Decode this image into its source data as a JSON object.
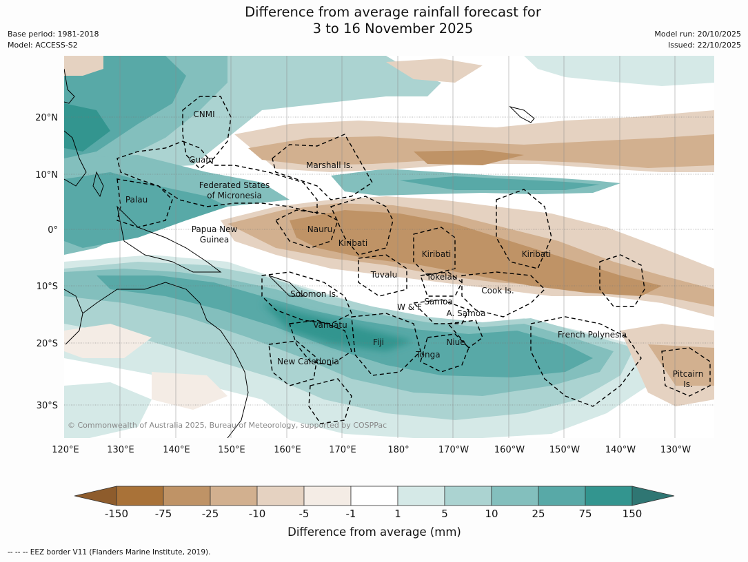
{
  "title": {
    "line1": "Difference from average rainfall forecast for",
    "line2": "3 to 16 November 2025"
  },
  "meta_left": {
    "base_period": "Base period: 1981-2018",
    "model": "Model: ACCESS-S2"
  },
  "meta_right": {
    "model_run": "Model run: 20/10/2025",
    "issued": "Issued: 22/10/2025"
  },
  "map": {
    "lon_ticks": [
      "120°E",
      "130°E",
      "140°E",
      "150°E",
      "160°E",
      "170°E",
      "180°",
      "170°W",
      "160°W",
      "150°W",
      "140°W",
      "130°W"
    ],
    "lat_ticks": [
      "20°N",
      "10°N",
      "0°",
      "10°S",
      "20°S",
      "30°S"
    ],
    "places": {
      "cnmi": "CNMI",
      "guam": "Guam",
      "marshall": "Marshall Is.",
      "fsm1": "Federated States",
      "fsm2": "of Micronesia",
      "palau": "Palau",
      "png1": "Papua New",
      "png2": "Guinea",
      "nauru": "Nauru",
      "kiribati_w": "Kiribati",
      "kiribati_c": "Kiribati",
      "kiribati_e": "Kiribati",
      "tuvalu": "Tuvalu",
      "tokelau": "Tokelau",
      "cook": "Cook Is.",
      "solomon": "Solomon Is.",
      "samoa": "Samoa",
      "wf": "W & F",
      "asamoa": "A. Samoa",
      "vanuatu": "Vanuatu",
      "fiji": "Fiji",
      "niue": "Niue",
      "tonga": "Tonga",
      "newcal": "New Caledonia",
      "frpoly": "French Polynesia",
      "pitcairn1": "Pitcairn",
      "pitcairn2": "Is."
    },
    "copyright": "© Commonwealth of Australia 2025, Bureau of Meteorology, supported by COSPPac"
  },
  "colorbar": {
    "labels": [
      "-150",
      "-75",
      "-25",
      "-10",
      "-5",
      "-1",
      "1",
      "5",
      "10",
      "25",
      "75",
      "150"
    ],
    "colors": [
      "#a97238",
      "#bf9366",
      "#d2b08f",
      "#e5d2c1",
      "#f4ece5",
      "#ffffff",
      "#d5e9e7",
      "#abd3d1",
      "#83bfbd",
      "#58a9a7",
      "#33958f"
    ],
    "under_color": "#8e5c2c",
    "over_color": "#2f7673",
    "title": "Difference from average (mm)"
  },
  "footnote": "--  --  -- EEZ border V11 (Flanders Marine Institute, 2019)."
}
